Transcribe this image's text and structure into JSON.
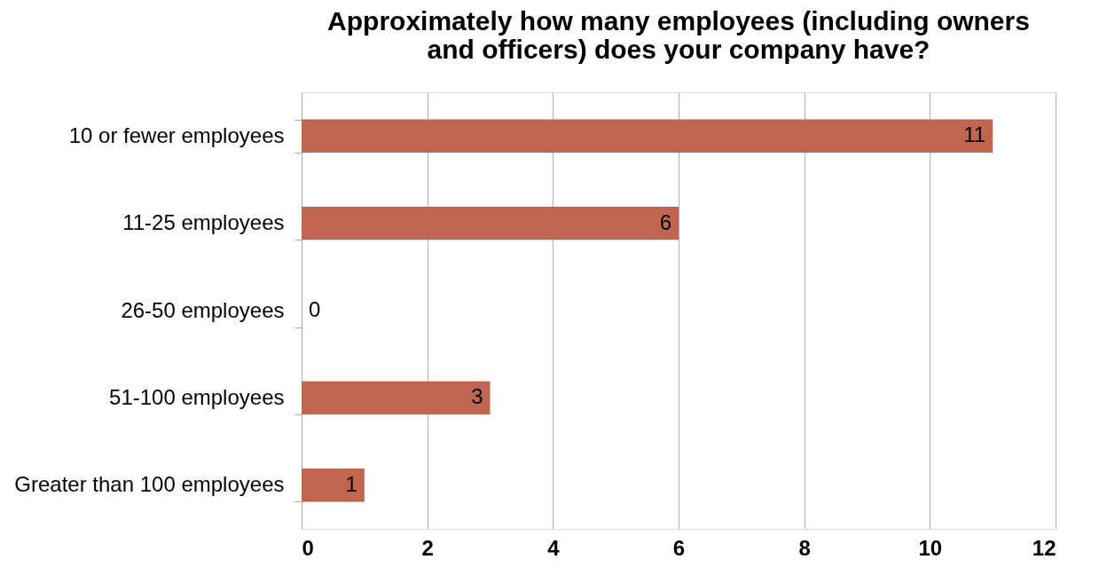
{
  "chart_data": {
    "type": "bar",
    "orientation": "horizontal",
    "title": "Approximately how many employees (including owners and officers) does your company have?",
    "categories": [
      "10 or fewer employees",
      "11-25 employees",
      "26-50 employees",
      "51-100 employees",
      "Greater than 100 employees"
    ],
    "values": [
      11,
      6,
      0,
      3,
      1
    ],
    "color": "#c0654f",
    "xlim": [
      0,
      12
    ],
    "xticks": [
      0,
      2,
      4,
      6,
      8,
      10,
      12
    ],
    "grid": "x",
    "data_labels": true
  }
}
